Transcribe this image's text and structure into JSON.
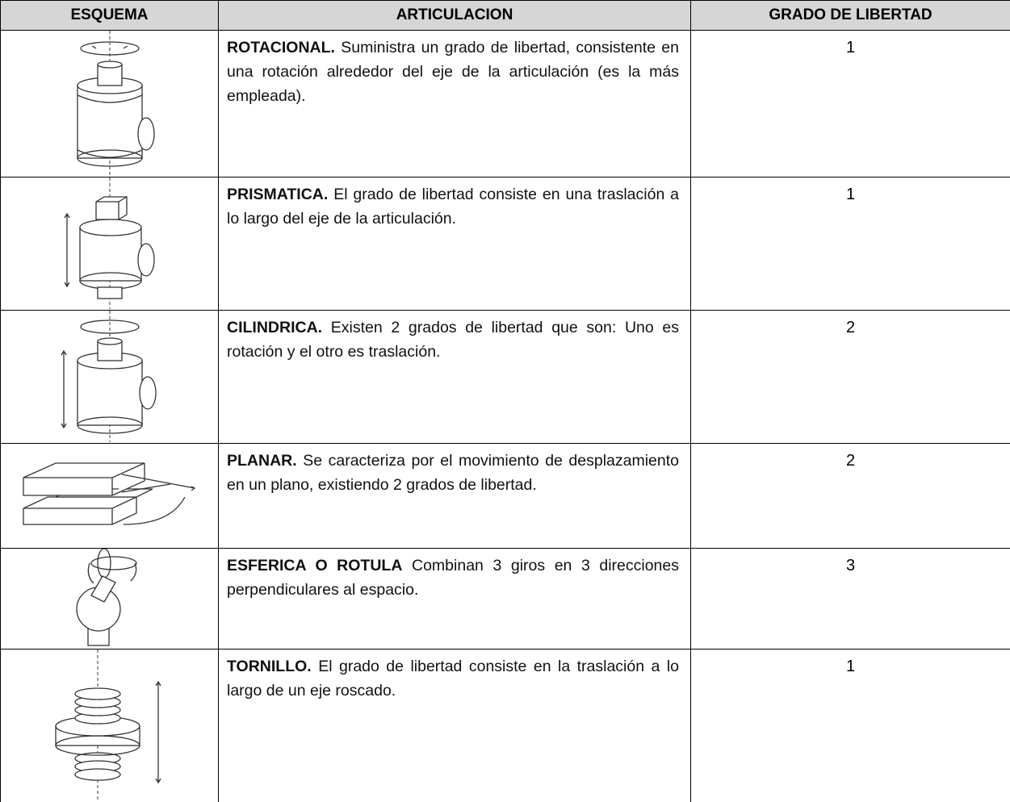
{
  "table": {
    "headers": [
      "ESQUEMA",
      "ARTICULACION",
      "GRADO DE LIBERTAD"
    ],
    "rows": [
      {
        "name": "ROTACIONAL.",
        "description": "Suministra un grado de libertad, consistente en una rotación alrededor del eje de la articulación (es la más empleada).",
        "dof": 1
      },
      {
        "name": "PRISMATICA.",
        "description": "El grado de libertad consiste en una traslación a lo largo del eje de la articulación.",
        "dof": 1
      },
      {
        "name": "CILINDRICA.",
        "description": "Existen 2 grados de libertad que son: Uno es rotación y el otro es traslación.",
        "dof": 2
      },
      {
        "name": "PLANAR.",
        "description": "Se caracteriza por el movimiento de desplazamiento en un plano, existiendo 2 grados de libertad.",
        "dof": 2
      },
      {
        "name": "ESFERICA O ROTULA",
        "description": "Combinan 3 giros en 3 direcciones perpendiculares al espacio.",
        "dof": 3
      },
      {
        "name": "TORNILLO.",
        "description": "El grado de libertad consiste en la traslación a lo largo de un eje roscado.",
        "dof": 1
      }
    ]
  }
}
